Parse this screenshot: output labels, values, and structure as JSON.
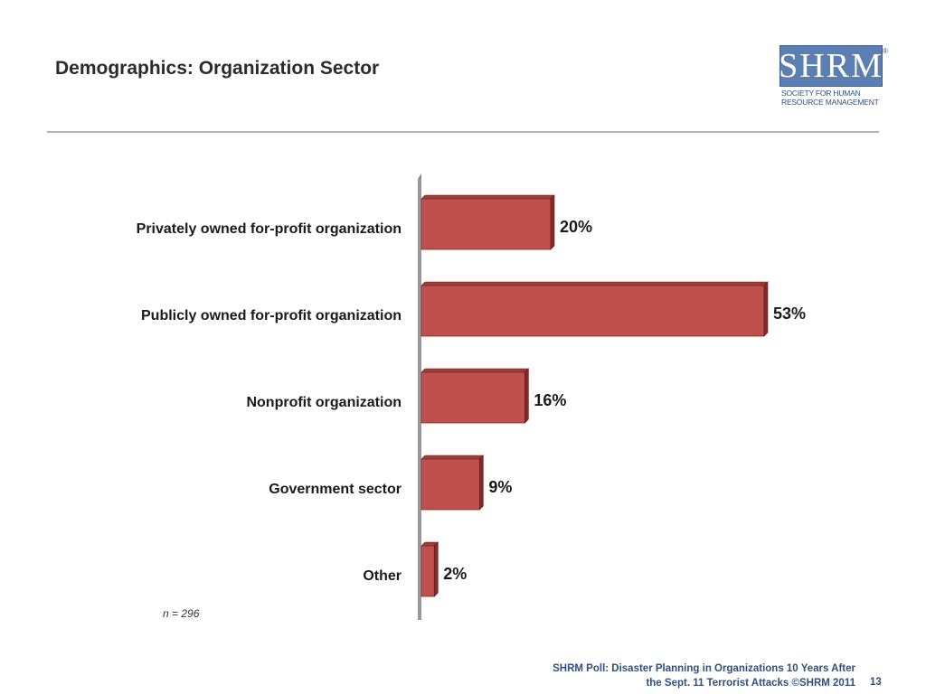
{
  "slide": {
    "title": "Demographics: Organization Sector",
    "note": "n = 296",
    "footer_line1": "SHRM Poll: Disaster Planning in Organizations 10 Years After",
    "footer_line2": "the Sept. 11 Terrorist Attacks ©SHRM 2011",
    "page_number": "13"
  },
  "logo": {
    "text": "SHRM",
    "subtitle_line1": "SOCIETY FOR HUMAN",
    "subtitle_line2": "RESOURCE MANAGEMENT",
    "color": "#5b7fb3"
  },
  "chart_data": {
    "type": "bar",
    "orientation": "horizontal",
    "style": "3d",
    "categories": [
      "Privately owned for-profit organization",
      "Publicly owned for-profit organization",
      "Nonprofit organization",
      "Government sector",
      "Other"
    ],
    "values": [
      20,
      53,
      16,
      9,
      2
    ],
    "value_labels": [
      "20%",
      "53%",
      "16%",
      "9%",
      "2%"
    ],
    "bar_color": "#c0504d",
    "xlim": [
      0,
      60
    ],
    "grid": false,
    "legend": "none"
  }
}
